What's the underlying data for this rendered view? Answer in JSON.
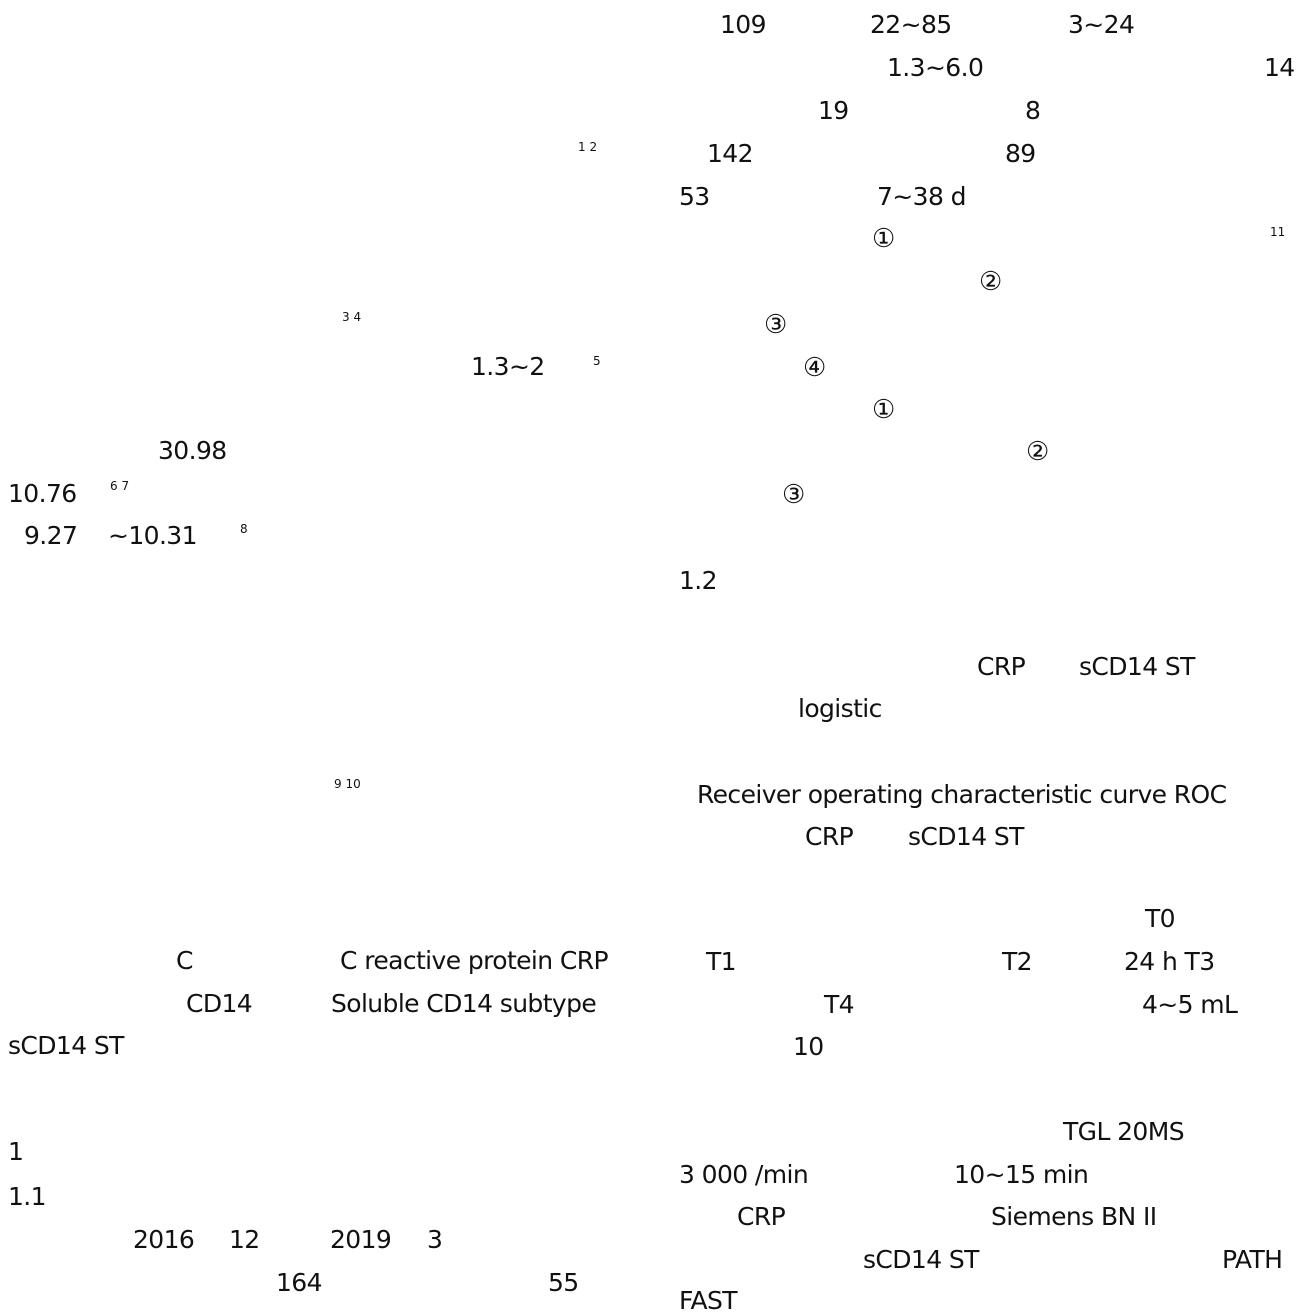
{
  "left_column": {
    "ref_1_2": "1 2",
    "ref_3_4": "3 4",
    "range_1_3_2": "1.3~2",
    "ref_5": "5",
    "value_30_98": "30.98",
    "value_10_76": "10.76",
    "ref_6_7": "6 7",
    "value_9_27": "9.27",
    "value_10_31": "~10.31",
    "ref_8": "8",
    "ref_9_10": "9 10",
    "crp_c": "C",
    "crp_full": "C reactive protein  CRP",
    "cd14": "CD14",
    "scd14_full": "Soluble CD14 subtype",
    "scd14_abbr": "sCD14 ST",
    "section_1": "1",
    "section_1_1": "1.1",
    "year_2016": "2016",
    "month_12": "12",
    "year_2019": "2019",
    "month_3": "3",
    "count_164": "164",
    "count_55": "55"
  },
  "right_column": {
    "n_109": "109",
    "age_range": "22~85",
    "range_3_24": "3~24",
    "range_1_3_6_0": "1.3~6.0",
    "n_14": "14",
    "n_19": "19",
    "n_8": "8",
    "n_142": "142",
    "n_89": "89",
    "n_53": "53",
    "days_range": "7~38 d",
    "circ_1a": "①",
    "ref_11": "11",
    "circ_2a": "②",
    "circ_3a": "③",
    "circ_4a": "④",
    "circ_1b": "①",
    "circ_2b": "②",
    "circ_3b": "③",
    "section_1_2": "1.2",
    "crp": "CRP",
    "scd14_st": "sCD14 ST",
    "logistic": "logistic",
    "roc_full": "Receiver  operating  characteristic  curve  ROC",
    "crp_2": "CRP",
    "scd14_st_2": "sCD14 ST",
    "t0": "T0",
    "t1": "T1",
    "t2": "T2",
    "hours_24_t3": "24 h  T3",
    "t4": "T4",
    "volume": "4~5 mL",
    "n_10": "10",
    "tgl": "TGL  20MS",
    "speed": "3 000    /min",
    "duration": "10~15 min",
    "crp_3": "CRP",
    "siemens": "Siemens BN II",
    "scd14_st_3": "sCD14 ST",
    "path": "PATH",
    "fast": "FAST"
  }
}
